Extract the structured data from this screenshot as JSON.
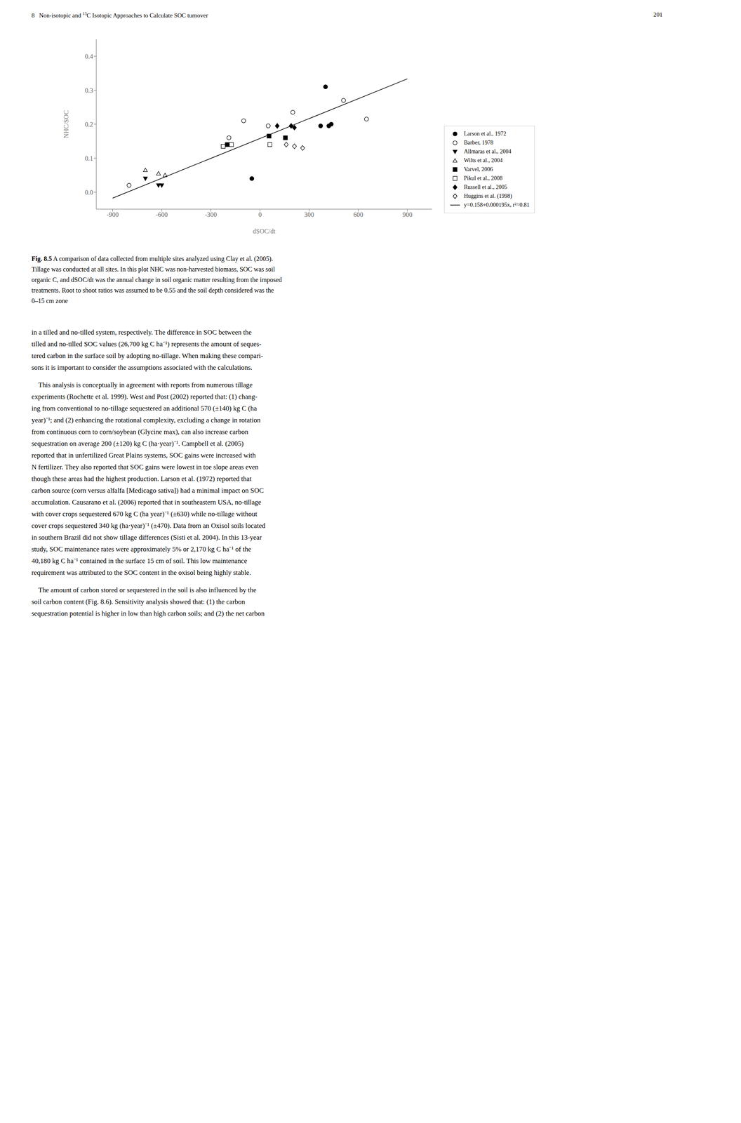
{
  "chart_data": {
    "type": "scatter",
    "xlabel": "dSOC/dt",
    "ylabel": "NHC/SOC",
    "xlim": [
      -1000,
      1050
    ],
    "ylim": [
      -0.05,
      0.45
    ],
    "xticks": [
      -900,
      -600,
      -300,
      0,
      300,
      600,
      900
    ],
    "yticks": [
      {
        "value": 0.0,
        "label": "0.0"
      },
      0.1,
      0.2,
      0.3,
      0.4
    ],
    "grid": false,
    "legend": "lower right",
    "series": [
      {
        "name": "Larson et al., 1972",
        "type": "scatter",
        "marker": "circle",
        "color": "#000000",
        "x": [
          400,
          420,
          435,
          370,
          -50
        ],
        "values": [
          0.31,
          0.195,
          0.2,
          0.195,
          0.04
        ]
      },
      {
        "name": "Barber, 1978",
        "type": "scatter",
        "marker": "open_circle",
        "color": "#000000",
        "x": [
          -800,
          -190,
          -100,
          50,
          200,
          510,
          650
        ],
        "values": [
          0.02,
          0.16,
          0.21,
          0.195,
          0.235,
          0.27,
          0.215
        ]
      },
      {
        "name": "Allmaras et al., 2004",
        "type": "scatter",
        "marker": "triangle_down",
        "color": "#000000",
        "x": [
          -700,
          -620,
          -600
        ],
        "values": [
          0.04,
          0.02,
          0.02
        ]
      },
      {
        "name": "Wilts et al., 2004",
        "type": "scatter",
        "marker": "open_triangle_up",
        "color": "#000000",
        "x": [
          -700,
          -620,
          -580
        ],
        "values": [
          0.065,
          0.055,
          0.05
        ]
      },
      {
        "name": "Varvel, 2006",
        "type": "scatter",
        "marker": "square",
        "color": "#000000",
        "x": [
          -200,
          55,
          155
        ],
        "values": [
          0.14,
          0.165,
          0.16
        ]
      },
      {
        "name": "Pikul et al., 2008",
        "type": "scatter",
        "marker": "open_square",
        "color": "#000000",
        "x": [
          -225,
          -175,
          60
        ],
        "values": [
          0.135,
          0.14,
          0.14
        ]
      },
      {
        "name": "Russell et al., 2005",
        "type": "scatter",
        "marker": "diamond",
        "color": "#000000",
        "x": [
          105,
          190,
          210
        ],
        "values": [
          0.195,
          0.195,
          0.19
        ]
      },
      {
        "name": "Huggins et al. (1998)",
        "type": "scatter",
        "marker": "open_diamond",
        "color": "#000000",
        "x": [
          160,
          210,
          260
        ],
        "values": [
          0.14,
          0.135,
          0.13
        ]
      },
      {
        "name": "y=0.158+0.000195x, r²=0.81",
        "type": "line",
        "line_style": "solid",
        "color": "#000000",
        "x": [
          -900,
          900
        ],
        "values": [
          -0.0175,
          0.3335
        ]
      }
    ],
    "annotations": {
      "header": [
        "8   Non-isotopic and ",
        "13",
        "C Isotopic Approaches to Calculate SOC turnover",
        "201"
      ],
      "caption": [
        "Fig. 8.5",
        " A comparison of data collected from multiple sites analyzed using Clay et al. (2005).",
        "Tillage was conducted at all sites. In this plot NHC was non-harvested biomass, SOC was soil",
        "organic C, and dSOC/dt was the annual change in soil organic matter resulting from the imposed",
        "treatments. Root to shoot ratios was assumed to be 0.55 and the soil depth considered was the",
        "0–15 cm zone"
      ],
      "body": [
        [
          "in a tilled and no-tilled system, respectively. The difference in SOC between the",
          "tilled and no-tilled SOC values (26,700 kg C ha⁻¹) represents the amount of seques-",
          "tered carbon in the surface soil by adopting no-tillage. When making these compari-",
          "sons it is important to consider the assumptions associated with the calculations."
        ],
        [
          "    This analysis is conceptually in agreement with reports from numerous tillage",
          "experiments (Rochette et al. 1999). West and Post (2002) reported that: (1) chang-",
          "ing from conventional to no-tillage sequestered an additional 570 (±140) kg C (ha",
          "year)⁻¹; and (2) enhancing the rotational complexity, excluding a change in rotation",
          "from continuous corn to corn/soybean (Glycine max), can also increase carbon",
          "sequestration on average 200 (±120) kg C (ha·year)⁻¹. Campbell et al. (2005)",
          "reported that in unfertilized Great Plains systems, SOC gains were increased with",
          "N fertilizer. They also reported that SOC gains were lowest in toe slope areas even",
          "though these areas had the highest production. Larson et al. (1972) reported that",
          "carbon source (corn versus alfalfa [Medicago sativa]) had a minimal impact on SOC",
          "accumulation. Causarano et al. (2006) reported that in southeastern USA, no-tillage",
          "with cover crops sequestered 670 kg C (ha year)⁻¹ (±630) while no-tillage without",
          "cover crops sequestered 340 kg (ha·year)⁻¹ (±470). Data from an Oxisol soils located",
          "in southern Brazil did not show tillage differences (Sisti et al. 2004). In this 13-year",
          "study, SOC maintenance rates were approximately 5% or 2,170 kg C ha⁻¹ of the",
          "40,180 kg C ha⁻¹ contained in the surface 15 cm of soil. This low maintenance",
          "requirement was attributed to the SOC content in the oxisol being highly stable."
        ],
        [
          "    The amount of carbon stored or sequestered in the soil is also influenced by the",
          "soil carbon content (Fig. 8.6). Sensitivity analysis showed that: (1) the carbon",
          "sequestration potential is higher in low than high carbon soils; and (2) the net carbon"
        ]
      ]
    }
  }
}
